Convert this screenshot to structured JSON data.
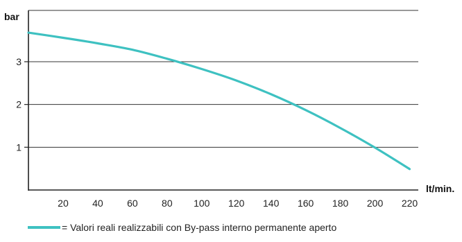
{
  "chart_data": {
    "type": "line",
    "title": "",
    "xlabel": "lt/min.",
    "ylabel": "bar",
    "xlim": [
      0,
      225
    ],
    "ylim": [
      0,
      4.2
    ],
    "x_ticks": [
      20,
      40,
      60,
      80,
      100,
      120,
      140,
      160,
      180,
      200,
      220
    ],
    "y_ticks": [
      1,
      2,
      3
    ],
    "grid": "horizontal",
    "series": [
      {
        "color": "#3EC1C1",
        "x": [
          0,
          20,
          40,
          60,
          80,
          100,
          120,
          140,
          160,
          180,
          200,
          220
        ],
        "y": [
          3.68,
          3.56,
          3.43,
          3.28,
          3.07,
          2.83,
          2.56,
          2.24,
          1.87,
          1.45,
          0.99,
          0.49
        ]
      }
    ],
    "legend": {
      "placement": "bottom-left",
      "text": "= Valori reali realizzabili con By-pass interno permanente aperto"
    }
  }
}
